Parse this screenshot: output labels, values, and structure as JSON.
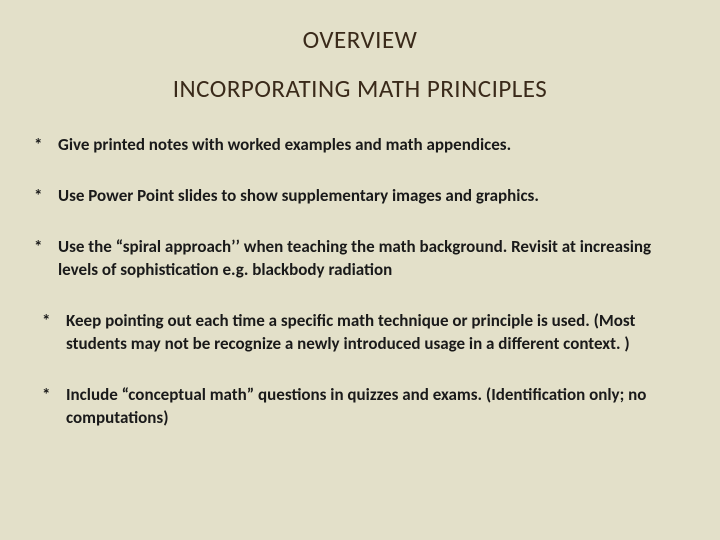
{
  "colors": {
    "background": "#e3e0c9",
    "title_color": "#3a2a1a",
    "text_color": "#1a1a1a"
  },
  "typography": {
    "title_fontsize": 25,
    "body_fontsize": 17,
    "body_fontweight": 700,
    "font_family": "Calibri"
  },
  "title1": "OVERVIEW",
  "title2": "INCORPORATING   MATH PRINCIPLES",
  "bullet_marker": "*",
  "bullets": [
    {
      "text": "Give printed notes with worked examples and math appendices.",
      "indent": 1
    },
    {
      "text": "Use Power Point slides to show supplementary images and graphics.",
      "indent": 1
    },
    {
      "text": "Use the “spiral approach’’ when teaching the math background. Revisit at increasing levels of sophistication e.g. blackbody radiation",
      "indent": 1
    },
    {
      "text": "Keep pointing out each time a specific math technique or principle is  used. (Most students may not be recognize a newly introduced usage in a different context. )",
      "indent": 2
    },
    {
      "text": "Include “conceptual math” questions in quizzes and exams. (Identification only; no computations)",
      "indent": 2
    }
  ]
}
